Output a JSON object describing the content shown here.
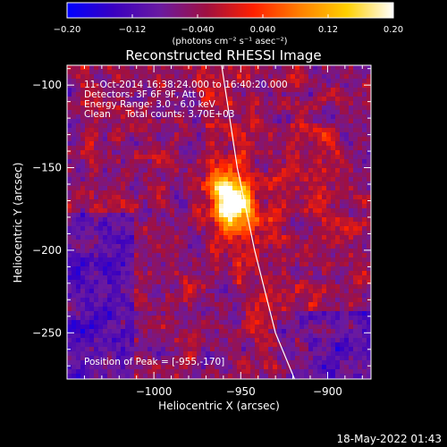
{
  "chart_data": {
    "type": "heatmap",
    "title": "Reconstructed RHESSI Image",
    "xlabel": "Heliocentric X (arcsec)",
    "ylabel": "Heliocentric Y (arcsec)",
    "xlim": [
      -1050,
      -875
    ],
    "ylim": [
      -278,
      -88
    ],
    "x_ticks": [
      -1000,
      -950,
      -900
    ],
    "x_tick_labels": [
      "−1000",
      "−950",
      "−900"
    ],
    "y_ticks": [
      -100,
      -150,
      -200,
      -250
    ],
    "y_tick_labels": [
      "−100",
      "−150",
      "−200",
      "−250"
    ],
    "colorbar": {
      "min": -0.2,
      "max": 0.2,
      "ticks": [
        -0.2,
        -0.12,
        -0.04,
        0.04,
        0.12,
        0.2
      ],
      "tick_labels": [
        "−0.20",
        "−0.12",
        "−0.040",
        "0.040",
        "0.12",
        "0.20"
      ],
      "unit_label": "(photons cm⁻² s⁻¹ asec⁻²)",
      "colors": [
        "#0000ff",
        "#3a00c0",
        "#6a1aa0",
        "#a01040",
        "#ff2000",
        "#ff8000",
        "#ffd000",
        "#ffffff"
      ]
    },
    "peak": {
      "x": -955,
      "y": -170,
      "value": 0.2
    },
    "limb_curve": [
      [
        -961,
        -88
      ],
      [
        -952,
        -150
      ],
      [
        -942,
        -200
      ],
      [
        -930,
        -250
      ],
      [
        -919,
        -278
      ]
    ],
    "annotations": [
      "11-Oct-2014 16:38:24.000 to 16:40:20.000",
      "Detectors: 3F 6F 9F, Att 0",
      "Energy Range: 3.0 - 6.0 keV",
      "Clean     Total counts: 3.70E+03",
      "Position of Peak = [-955,-170]"
    ],
    "timestamp": "18-May-2022 01:43"
  }
}
